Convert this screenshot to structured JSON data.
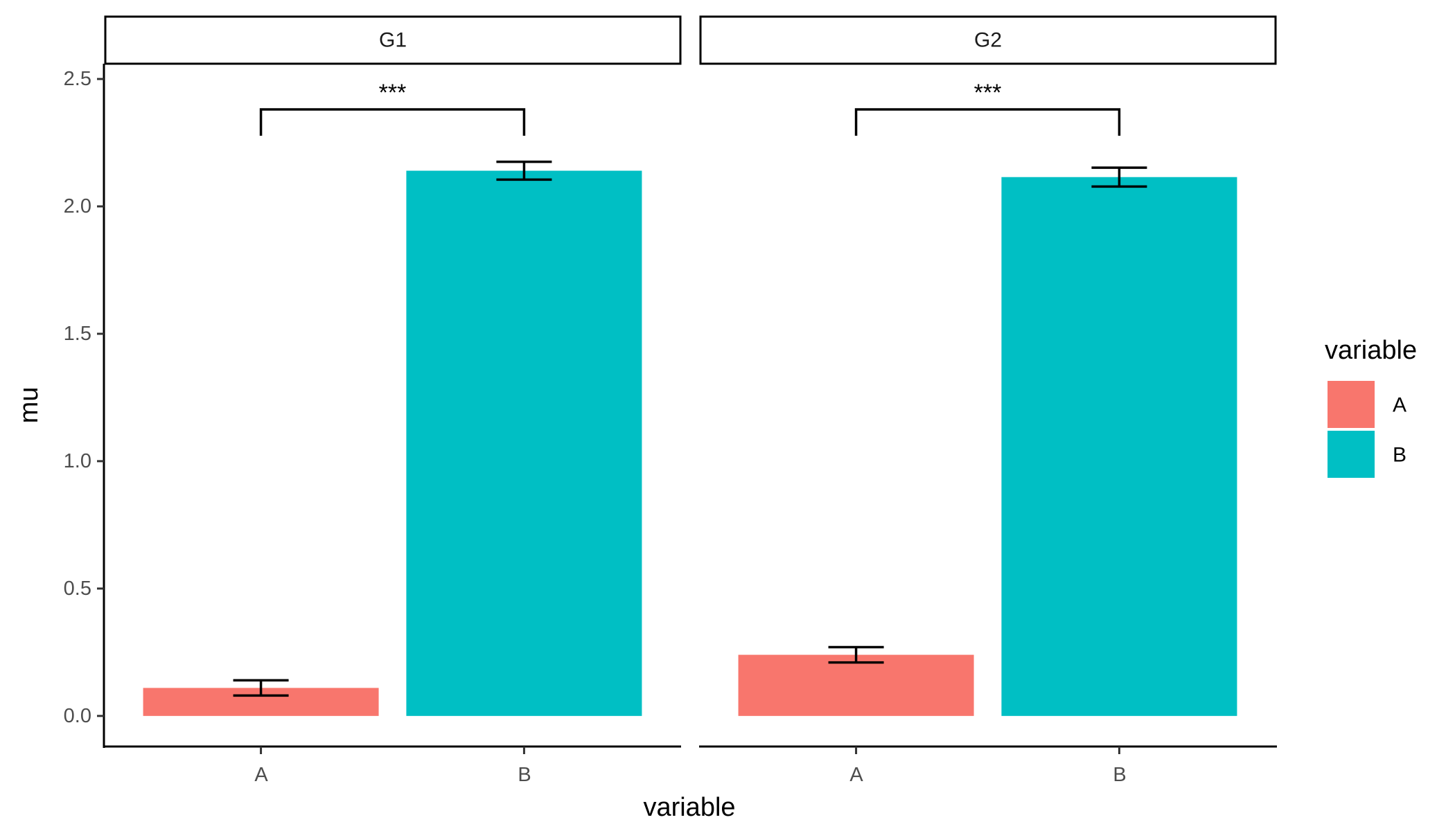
{
  "chart_data": {
    "type": "bar",
    "facets": [
      "G1",
      "G2"
    ],
    "categories": [
      "A",
      "B"
    ],
    "series": [
      {
        "facet": "G1",
        "values": [
          0.11,
          2.14
        ],
        "error_low": [
          0.08,
          2.105
        ],
        "error_high": [
          0.14,
          2.175
        ]
      },
      {
        "facet": "G2",
        "values": [
          0.24,
          2.115
        ],
        "error_low": [
          0.21,
          2.078
        ],
        "error_high": [
          0.27,
          2.152
        ]
      }
    ],
    "significance": [
      {
        "facet": "G1",
        "from": "A",
        "to": "B",
        "label": "***"
      },
      {
        "facet": "G2",
        "from": "A",
        "to": "B",
        "label": "***"
      }
    ],
    "xlabel": "variable",
    "ylabel": "mu",
    "ylim": [
      -0.12,
      2.56
    ],
    "yticks": [
      0.0,
      0.5,
      1.0,
      1.5,
      2.0,
      2.5
    ],
    "ytick_labels": [
      "0.0",
      "0.5",
      "1.0",
      "1.5",
      "2.0",
      "2.5"
    ],
    "legend": {
      "title": "variable",
      "entries": [
        "A",
        "B"
      ],
      "placement": "right"
    },
    "colors": {
      "A": "#F8766D",
      "B": "#00BFC4"
    }
  }
}
